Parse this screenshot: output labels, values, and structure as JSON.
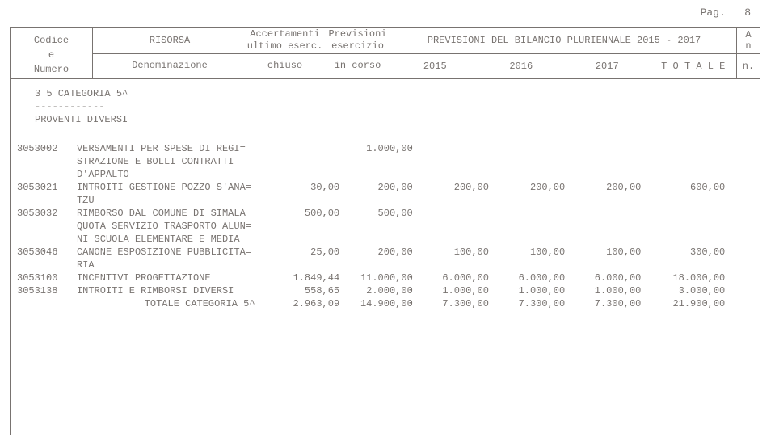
{
  "page_label": "Pag.",
  "page_number": "8",
  "header": {
    "left": [
      "Codice",
      "e",
      "Numero"
    ],
    "risorsa": "RISORSA",
    "denominazione": "Denominazione",
    "accertamenti": [
      "Accertamenti",
      "ultimo eserc.",
      "chiuso"
    ],
    "previsioni": [
      "Previsioni",
      "esercizio",
      "in corso"
    ],
    "plur_title": "PREVISIONI DEL BILANCIO PLURIENNALE 2015 - 2017",
    "y2015": "2015",
    "y2016": "2016",
    "y2017": "2017",
    "totale": "T O T A L E",
    "A": "A",
    "n": "n",
    "ndot": "n."
  },
  "section": {
    "line1": "3 5 CATEGORIA 5^",
    "line2": "------------",
    "line3": "PROVENTI DIVERSI"
  },
  "rows": [
    {
      "code": "3053002",
      "label": [
        "VERSAMENTI  PER SPESE DI REGI=",
        "STRAZIONE  E  BOLLI  CONTRATTI",
        "D'APPALTO"
      ],
      "accert": "",
      "prev": "1.000,00",
      "y2015": "",
      "y2016": "",
      "y2017": "",
      "tot": ""
    },
    {
      "code": "3053021",
      "label": [
        "INTROITI GESTIONE POZZO S'ANA=",
        "TZU"
      ],
      "accert": "30,00",
      "prev": "200,00",
      "y2015": "200,00",
      "y2016": "200,00",
      "y2017": "200,00",
      "tot": "600,00"
    },
    {
      "code": "3053032",
      "label": [
        "RIMBORSO  DAL COMUNE DI SIMALA",
        "QUOTA SERVIZIO TRASPORTO ALUN=",
        "NI SCUOLA ELEMENTARE E MEDIA"
      ],
      "accert": "500,00",
      "prev": "500,00",
      "y2015": "",
      "y2016": "",
      "y2017": "",
      "tot": ""
    },
    {
      "code": "3053046",
      "label": [
        "CANONE ESPOSIZIONE PUBBLICITA=",
        "RIA"
      ],
      "accert": "25,00",
      "prev": "200,00",
      "y2015": "100,00",
      "y2016": "100,00",
      "y2017": "100,00",
      "tot": "300,00"
    },
    {
      "code": "3053100",
      "label": [
        "INCENTIVI PROGETTAZIONE"
      ],
      "accert": "1.849,44",
      "prev": "11.000,00",
      "y2015": "6.000,00",
      "y2016": "6.000,00",
      "y2017": "6.000,00",
      "tot": "18.000,00"
    },
    {
      "code": "3053138",
      "label": [
        "INTROITI E RIMBORSI DIVERSI"
      ],
      "accert": "558,65",
      "prev": "2.000,00",
      "y2015": "1.000,00",
      "y2016": "1.000,00",
      "y2017": "1.000,00",
      "tot": "3.000,00"
    }
  ],
  "total": {
    "label": "TOTALE CATEGORIA 5^",
    "accert": "2.963,09",
    "prev": "14.900,00",
    "y2015": "7.300,00",
    "y2016": "7.300,00",
    "y2017": "7.300,00",
    "tot": "21.900,00"
  }
}
